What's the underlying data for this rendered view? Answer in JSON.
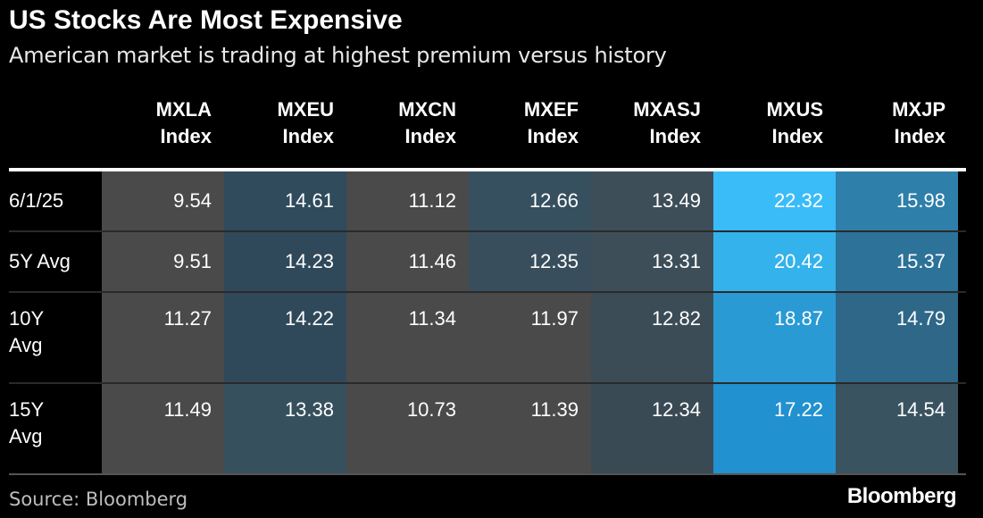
{
  "title": "US Stocks Are Most Expensive",
  "subtitle": "American market is trading at highest premium versus history",
  "source": "Source: Bloomberg",
  "logo": "Bloomberg",
  "chart_data": {
    "type": "table",
    "columns": [
      {
        "line1": "MXLA",
        "line2": "Index"
      },
      {
        "line1": "MXEU",
        "line2": "Index"
      },
      {
        "line1": "MXCN",
        "line2": "Index"
      },
      {
        "line1": "MXEF",
        "line2": "Index"
      },
      {
        "line1": "MXASJ",
        "line2": "Index"
      },
      {
        "line1": "MXUS",
        "line2": "Index"
      },
      {
        "line1": "MXJP",
        "line2": "Index"
      }
    ],
    "rows": [
      {
        "label": [
          "6/1/25"
        ],
        "values": [
          "9.54",
          "14.61",
          "11.12",
          "12.66",
          "13.49",
          "22.32",
          "15.98"
        ]
      },
      {
        "label": [
          "5Y Avg"
        ],
        "values": [
          "9.51",
          "14.23",
          "11.46",
          "12.35",
          "13.31",
          "20.42",
          "15.37"
        ]
      },
      {
        "label": [
          "10Y",
          "Avg"
        ],
        "values": [
          "11.27",
          "14.22",
          "11.34",
          "11.97",
          "12.82",
          "18.87",
          "14.79"
        ]
      },
      {
        "label": [
          "15Y",
          "Avg"
        ],
        "values": [
          "11.49",
          "13.38",
          "10.73",
          "11.39",
          "12.34",
          "17.22",
          "14.54"
        ]
      }
    ],
    "cell_colors": [
      [
        "#4a4a4a",
        "#2f4b5c",
        "#4a4a4a",
        "#37505f",
        "#3e4e58",
        "#39bcf8",
        "#2e7faa"
      ],
      [
        "#4a4a4a",
        "#30495a",
        "#4a4a4a",
        "#384e5c",
        "#3e4e58",
        "#34b2ec",
        "#2c7299"
      ],
      [
        "#4a4a4a",
        "#30495a",
        "#4a4a4a",
        "#4a4a4a",
        "#3b4c57",
        "#2a9ad4",
        "#2e6788"
      ],
      [
        "#4a4a4a",
        "#36505e",
        "#4a4a4a",
        "#4a4a4a",
        "#394a55",
        "#2191cf",
        "#3a5361"
      ]
    ]
  }
}
